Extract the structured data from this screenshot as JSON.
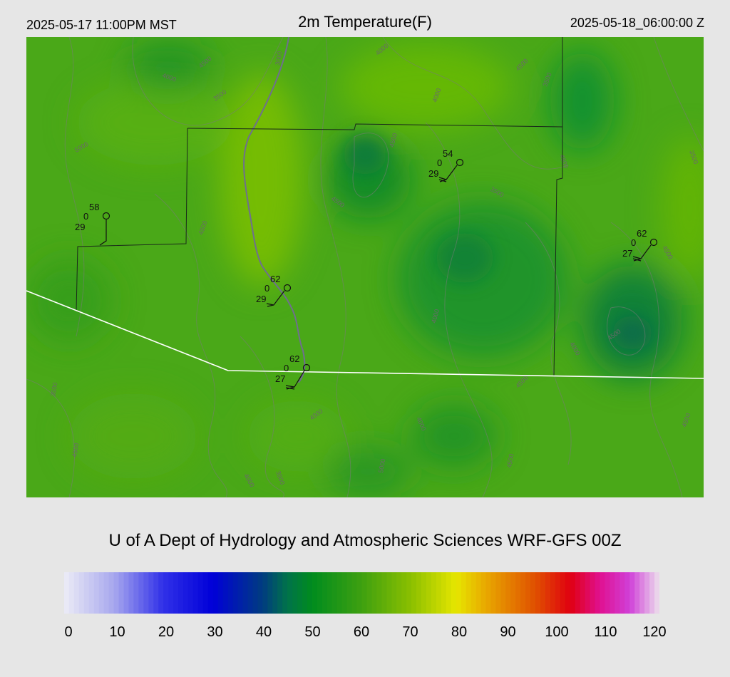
{
  "header": {
    "local_time": "2025-05-17 11:00PM MST",
    "title": "2m Temperature(F)",
    "utc_time": "2025-05-18_06:00:00 Z"
  },
  "footer": {
    "credit": "U of A Dept of Hydrology and Atmospheric Sciences WRF-GFS 00Z"
  },
  "colorbar": {
    "ticks": [
      "0",
      "10",
      "20",
      "30",
      "40",
      "50",
      "60",
      "70",
      "80",
      "90",
      "100",
      "110",
      "120"
    ],
    "min": 0,
    "max": 120,
    "stops": [
      {
        "v": 0,
        "c": "#ececf6"
      },
      {
        "v": 10,
        "c": "#a8a8ee"
      },
      {
        "v": 20,
        "c": "#3030e8"
      },
      {
        "v": 30,
        "c": "#0000d8"
      },
      {
        "v": 40,
        "c": "#003c80"
      },
      {
        "v": 45,
        "c": "#00724a"
      },
      {
        "v": 50,
        "c": "#008c1e"
      },
      {
        "v": 60,
        "c": "#3ea010"
      },
      {
        "v": 70,
        "c": "#8cc000"
      },
      {
        "v": 79,
        "c": "#e6e600"
      },
      {
        "v": 85,
        "c": "#e8a800"
      },
      {
        "v": 95,
        "c": "#e05000"
      },
      {
        "v": 102,
        "c": "#e00010"
      },
      {
        "v": 108,
        "c": "#e01090"
      },
      {
        "v": 114,
        "c": "#d040d8"
      },
      {
        "v": 120,
        "c": "#ece0ec"
      }
    ]
  },
  "map": {
    "base_color": "#4aa818",
    "contour_labels": [
      "4000",
      "4500",
      "3500",
      "3000",
      "4000",
      "4500",
      "3500",
      "5000",
      "4000",
      "4500",
      "4500",
      "3500",
      "4500",
      "4500",
      "4000",
      "4000",
      "4500",
      "3500",
      "4500",
      "4000",
      "4000",
      "3500",
      "4500",
      "4000",
      "3500",
      "5000",
      "4500",
      "4500",
      "4500"
    ],
    "stations": [
      {
        "temp": "58",
        "gust": "0",
        "dew": "29"
      },
      {
        "temp": "54",
        "gust": "0",
        "dew": "29"
      },
      {
        "temp": "62",
        "gust": "0",
        "dew": "29"
      },
      {
        "temp": "62",
        "gust": "0",
        "dew": "27"
      },
      {
        "temp": "62",
        "gust": "0",
        "dew": "27"
      }
    ]
  }
}
